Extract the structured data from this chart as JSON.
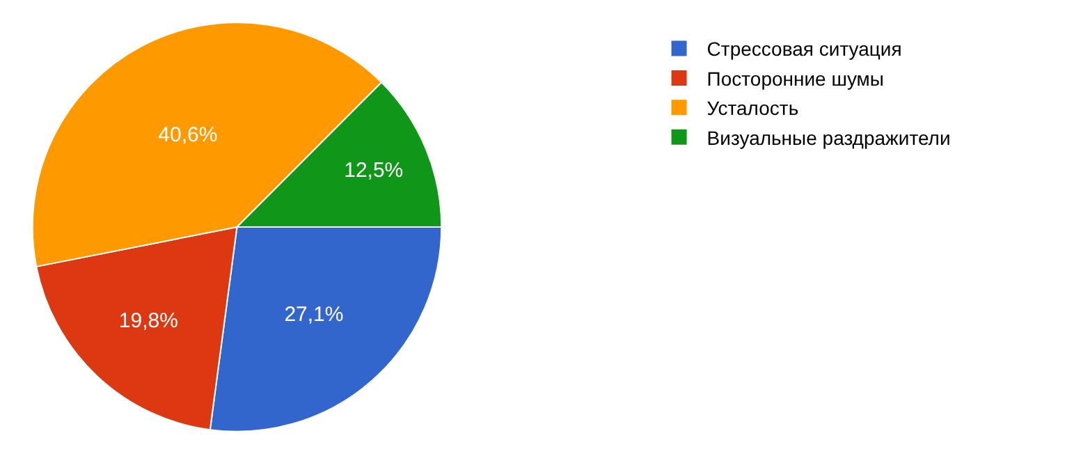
{
  "chart_data": {
    "type": "pie",
    "categories": [
      "Стрессовая ситуация",
      "Посторонние шумы",
      "Усталость",
      "Визуальные раздражители"
    ],
    "values": [
      27.1,
      19.8,
      40.6,
      12.5
    ],
    "colors": [
      "#3366cc",
      "#dc3912",
      "#ff9900",
      "#109618"
    ],
    "value_labels": [
      "27,1%",
      "19,8%",
      "40,6%",
      "12,5%"
    ],
    "legend": "right"
  }
}
